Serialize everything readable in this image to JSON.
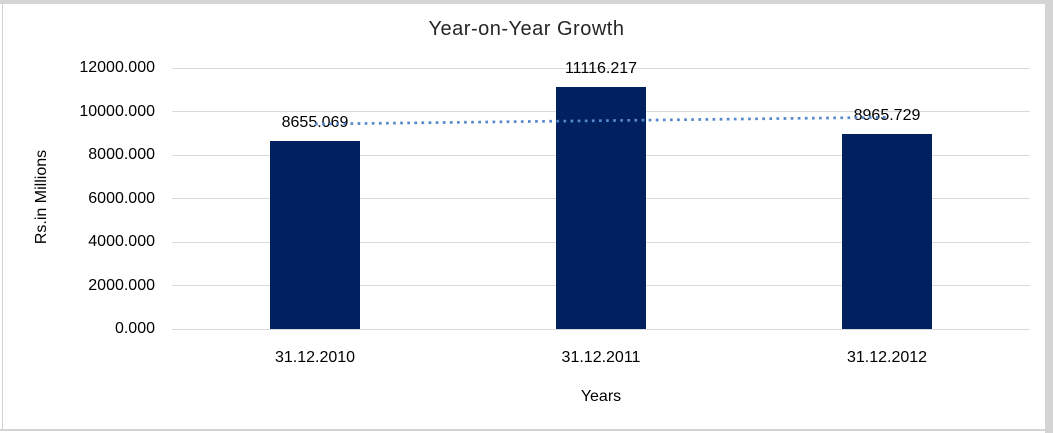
{
  "chart_data": {
    "type": "bar",
    "title": "Year-on-Year Growth",
    "xlabel": "Years",
    "ylabel": "Rs.in Millions",
    "categories": [
      "31.12.2010",
      "31.12.2011",
      "31.12.2012"
    ],
    "values": [
      8655.069,
      11116.217,
      8965.729
    ],
    "data_labels": [
      "8655.069",
      "11116.217",
      "8965.729"
    ],
    "y_ticks": [
      {
        "label": "12000.000",
        "value": 12000
      },
      {
        "label": "10000.000",
        "value": 10000
      },
      {
        "label": "8000.000",
        "value": 8000
      },
      {
        "label": "6000.000",
        "value": 6000
      },
      {
        "label": "4000.000",
        "value": 4000
      },
      {
        "label": "2000.000",
        "value": 2000
      },
      {
        "label": "0.000",
        "value": 0
      }
    ],
    "ylim": [
      0,
      12000
    ],
    "grid": true,
    "legend": "none",
    "trendline": {
      "type": "linear",
      "style": "dotted"
    },
    "colors": {
      "bar": "#002060",
      "trendline": "#5588cc",
      "gridline": "#d9d9d9",
      "text": "#000000",
      "frame": "#d4d4d4"
    }
  }
}
